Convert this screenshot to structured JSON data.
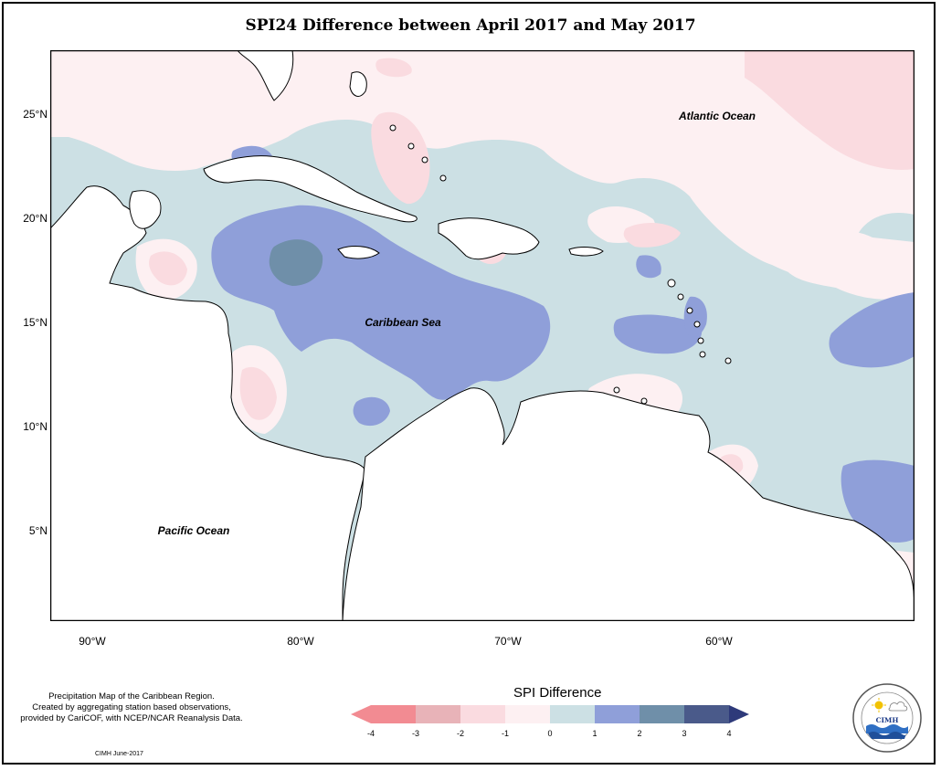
{
  "title": "SPI24 Difference between April 2017 and May 2017",
  "map": {
    "labels": {
      "atlantic": "Atlantic Ocean",
      "caribbean": "Caribbean Sea",
      "pacific": "Pacific Ocean"
    },
    "lat_ticks": [
      "25°N",
      "20°N",
      "15°N",
      "10°N",
      "5°N"
    ],
    "lon_ticks": [
      "90°W",
      "80°W",
      "70°W",
      "60°W"
    ]
  },
  "legend": {
    "title": "SPI Difference",
    "ticks": [
      "-4",
      "-3",
      "-2",
      "-1",
      "0",
      "1",
      "2",
      "3",
      "4"
    ],
    "bins": [
      {
        "from": -4,
        "to": -3,
        "color": "#f28b92"
      },
      {
        "from": -3,
        "to": -2,
        "color": "#e8b3b8"
      },
      {
        "from": -2,
        "to": -1,
        "color": "#fadbe0"
      },
      {
        "from": -1,
        "to": 0,
        "color": "#fdf0f2"
      },
      {
        "from": 0,
        "to": 1,
        "color": "#cce0e4"
      },
      {
        "from": 1,
        "to": 2,
        "color": "#8f9fd9"
      },
      {
        "from": 2,
        "to": 3,
        "color": "#6f8fa9"
      },
      {
        "from": 3,
        "to": 4,
        "color": "#4a5a8a"
      }
    ],
    "min_arrow_color": "#f28b92",
    "max_arrow_color": "#2e3a7a"
  },
  "footer": {
    "line1": "Precipitation Map of the Caribbean Region.",
    "line2": "Created by aggregating station based observations,",
    "line3": "provided by CariCOF, with NCEP/NCAR Reanalysis Data.",
    "credit": "CIMH June-2017"
  },
  "logo": {
    "text": "CIMH"
  }
}
